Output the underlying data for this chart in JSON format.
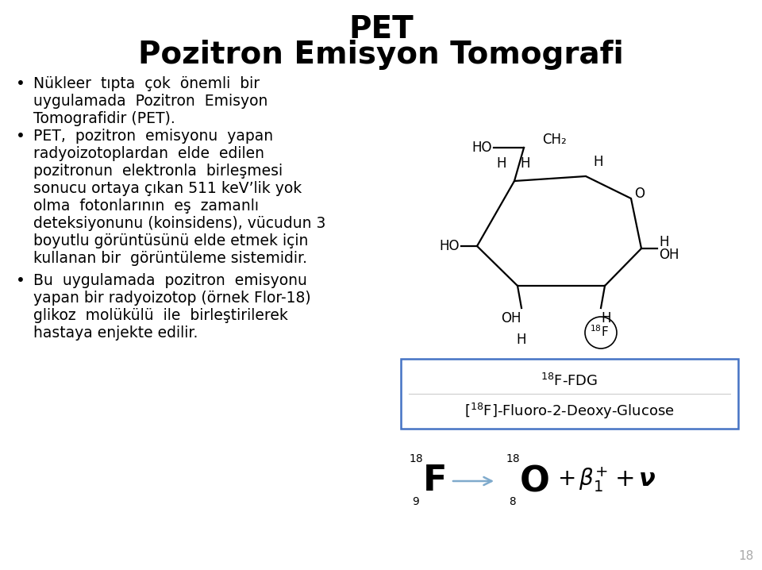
{
  "title_line1": "PET",
  "title_line2": "Pozitron Emisyon Tomografi",
  "bullet1_text": "Nükleer  tıpta  çok  önemli  bir\nuygulamada  Pozitron  Emisyon\nTomografidir (PET).",
  "bullet2_text": "PET,  pozitron  emisyonu  yapan\nradyoizotoplardan  elde  edilen\npozitronun  elektronla  birleşmesi\nsonucu ortaya çıkan 511 keV’lik yok\nolma  fotonlarının  eş  zamanlı\ndeteksiyonunu (koinsidens), vücudun 3\nboyutlu görüntüsünü elde etmek için\nkullanan bir  görüntüleme sistemidir.",
  "bullet3_text": "Bu  uygulamada  pozitron  emisyonu\nyapan bir radyoizotop (örnek Flor-18)\nglikoz  molükülü  ile  birleştirilerek\nhastaya enjekte edilir.",
  "page_number": "18",
  "bg_color": "#ffffff",
  "text_color": "#000000",
  "box_color": "#4472c4",
  "arrow_color": "#7faacc"
}
